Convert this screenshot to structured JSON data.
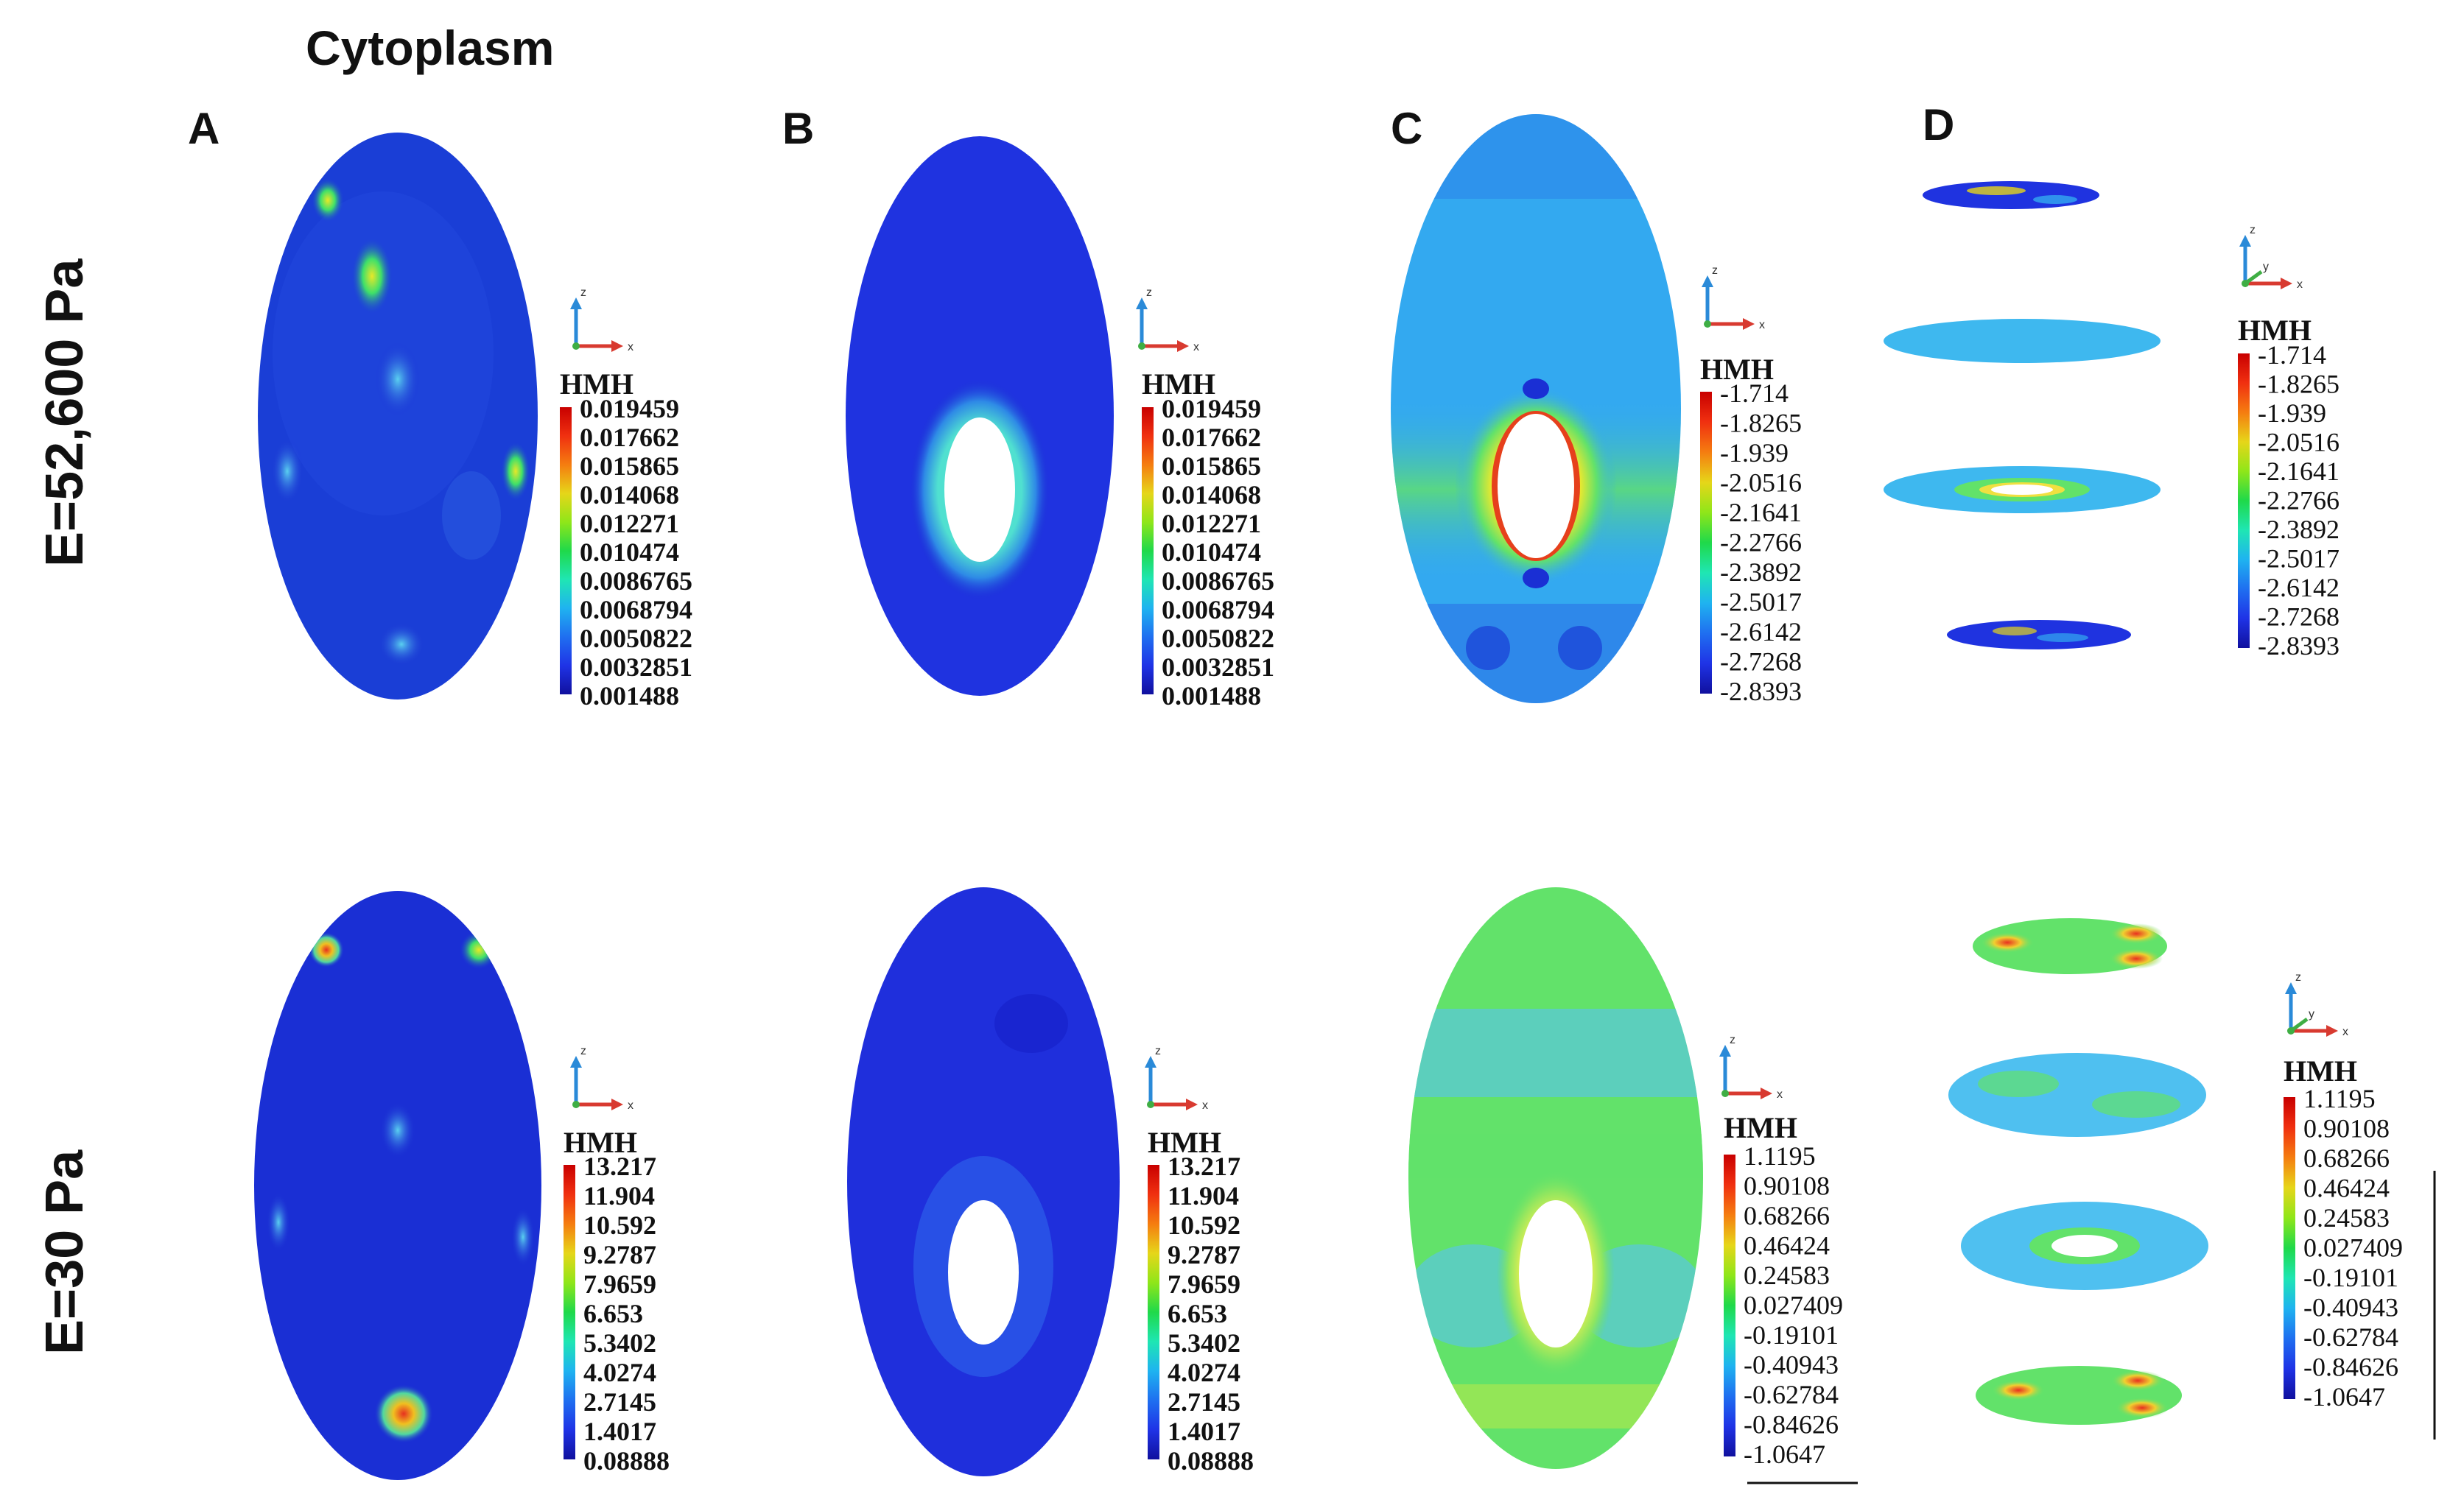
{
  "figure": {
    "title": "Cytoplasm",
    "panels": [
      "A",
      "B",
      "C",
      "D"
    ],
    "rows": [
      {
        "label": "E=52,600 Pa"
      },
      {
        "label": "E=30  Pa"
      }
    ],
    "legends": {
      "A1": {
        "title": "HMH",
        "ticks": [
          "0.019459",
          "0.017662",
          "0.015865",
          "0.014068",
          "0.012271",
          "0.010474",
          "0.0086765",
          "0.0068794",
          "0.0050822",
          "0.0032851",
          "0.001488"
        ]
      },
      "B1": {
        "title": "HMH",
        "ticks": [
          "0.019459",
          "0.017662",
          "0.015865",
          "0.014068",
          "0.012271",
          "0.010474",
          "0.0086765",
          "0.0068794",
          "0.0050822",
          "0.0032851",
          "0.001488"
        ]
      },
      "C1": {
        "title": "HMH",
        "ticks": [
          "-1.714",
          "-1.8265",
          "-1.939",
          "-2.0516",
          "-2.1641",
          "-2.2766",
          "-2.3892",
          "-2.5017",
          "-2.6142",
          "-2.7268",
          "-2.8393"
        ]
      },
      "D1": {
        "title": "HMH",
        "ticks": [
          "-1.714",
          "-1.8265",
          "-1.939",
          "-2.0516",
          "-2.1641",
          "-2.2766",
          "-2.3892",
          "-2.5017",
          "-2.6142",
          "-2.7268",
          "-2.8393"
        ]
      },
      "A2": {
        "title": "HMH",
        "ticks": [
          "13.217",
          "11.904",
          "10.592",
          "9.2787",
          "7.9659",
          "6.653",
          "5.3402",
          "4.0274",
          "2.7145",
          "1.4017",
          "0.08888"
        ]
      },
      "B2": {
        "title": "HMH",
        "ticks": [
          "13.217",
          "11.904",
          "10.592",
          "9.2787",
          "7.9659",
          "6.653",
          "5.3402",
          "4.0274",
          "2.7145",
          "1.4017",
          "0.08888"
        ]
      },
      "C2": {
        "title": "HMH",
        "ticks": [
          "1.1195",
          "0.90108",
          "0.68266",
          "0.46424",
          "0.24583",
          "0.027409",
          "-0.19101",
          "-0.40943",
          "-0.62784",
          "-0.84626",
          "-1.0647"
        ]
      },
      "D2": {
        "title": "HMH",
        "ticks": [
          "1.1195",
          "0.90108",
          "0.68266",
          "0.46424",
          "0.24583",
          "0.027409",
          "-0.19101",
          "-0.40943",
          "-0.62784",
          "-0.84626",
          "-1.0647"
        ]
      }
    },
    "triad_axes": [
      "z",
      "x",
      "y"
    ],
    "colors": {
      "deep_blue": "#1a2fd4",
      "light_blue": "#33a9f0",
      "cyan_green": "#58e8b8",
      "green": "#62e26a",
      "yellow": "#e9e93a",
      "red": "#e63020"
    },
    "colormap": [
      "#c80000",
      "#f03010",
      "#f57d10",
      "#e6d619",
      "#8fe619",
      "#1fd94a",
      "#1fe6b3",
      "#1fb3f0",
      "#1f6ff0",
      "#1f33e6",
      "#10109e"
    ]
  }
}
